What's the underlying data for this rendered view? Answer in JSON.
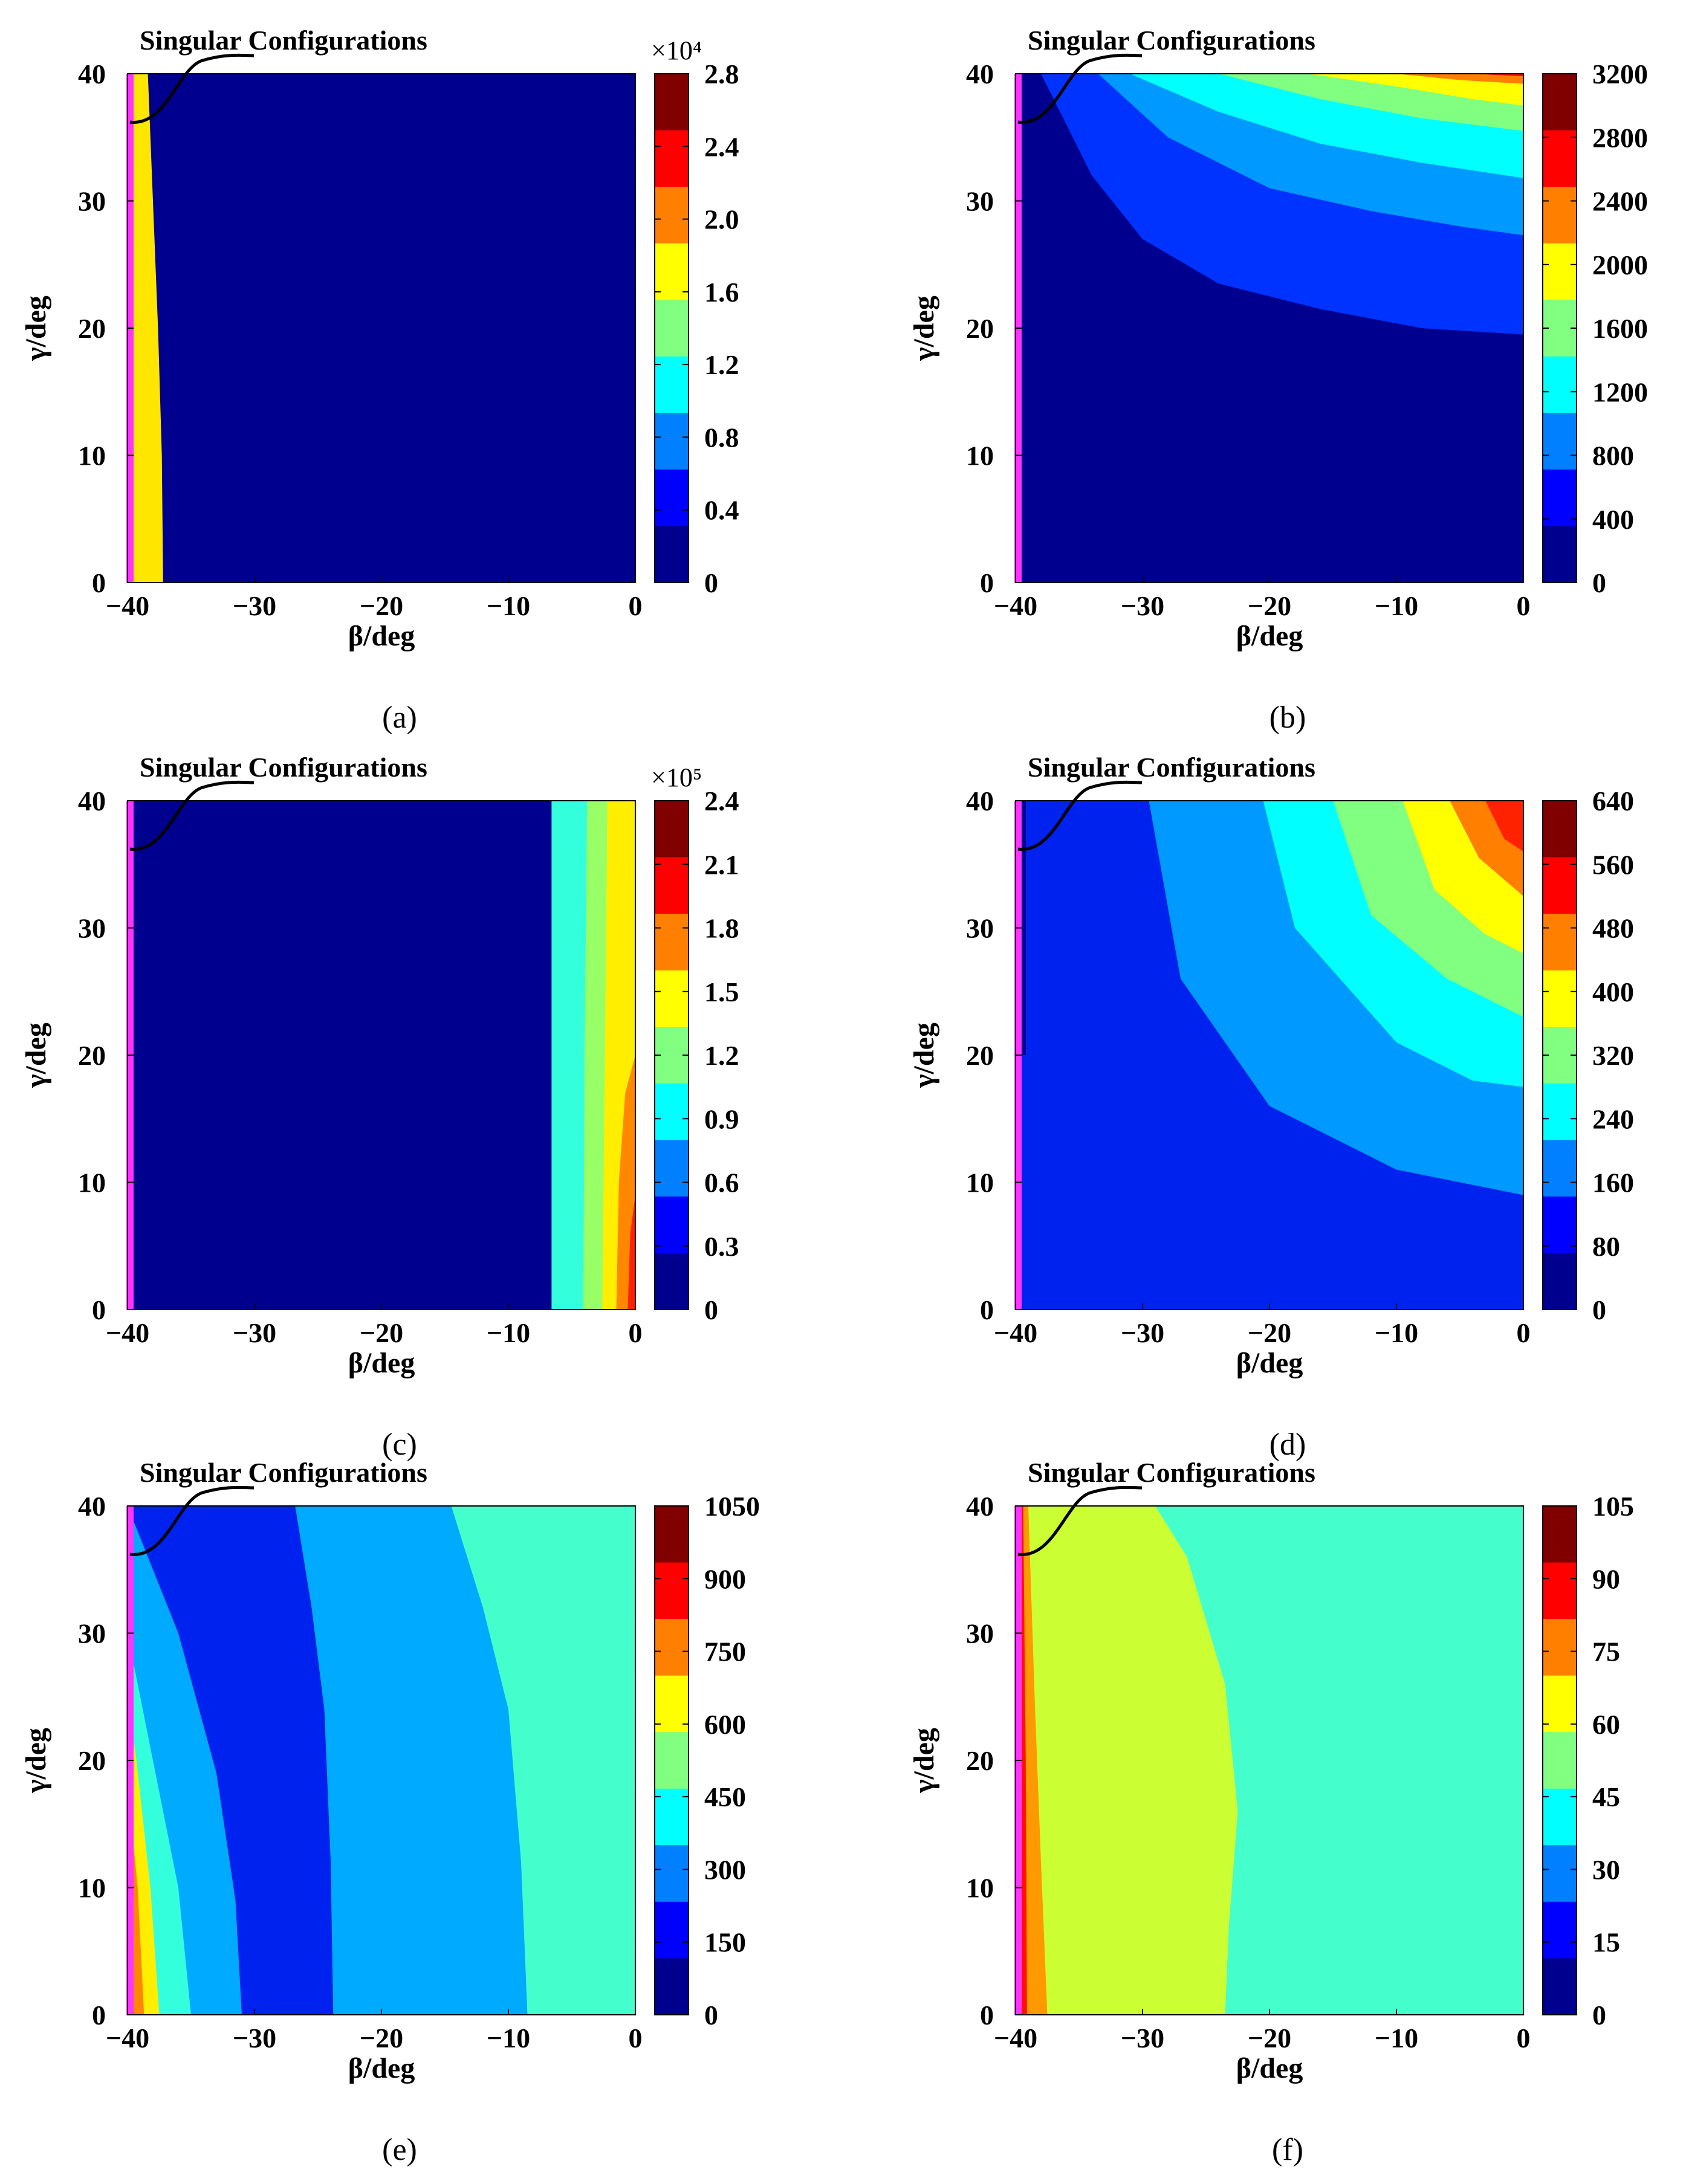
{
  "figure": {
    "annotation_label": "Singular Configurations",
    "singular_line_color": "#ff33ff",
    "colormap": [
      "#00008f",
      "#0000ff",
      "#0080ff",
      "#00ffff",
      "#80ff80",
      "#ffff00",
      "#ff8000",
      "#ff0000",
      "#800000"
    ]
  },
  "chart_data": [
    {
      "panel": "a",
      "caption": "(a)",
      "type": "filled-contour",
      "xlabel": "β/deg",
      "ylabel": "γ/deg",
      "xlim": [
        -40,
        0
      ],
      "ylim": [
        0,
        40
      ],
      "xticks": [
        "−40",
        "−30",
        "−20",
        "−10",
        "0"
      ],
      "yticks": [
        "0",
        "10",
        "20",
        "30",
        "40"
      ],
      "colorbar": {
        "range": [
          0,
          2.8
        ],
        "ticks": [
          "0",
          "0.4",
          "0.8",
          "1.2",
          "1.6",
          "2.0",
          "2.4",
          "2.8"
        ],
        "exponent": "×10⁴"
      },
      "singular_configuration_beta": -40,
      "regions": [
        {
          "color": "#00008f",
          "boundary": "full"
        },
        {
          "color": "#ffe600",
          "boundary": [
            [
              -40,
              0
            ],
            [
              -37.2,
              0
            ],
            [
              -37.3,
              10
            ],
            [
              -37.6,
              20
            ],
            [
              -38.0,
              30
            ],
            [
              -38.4,
              40
            ],
            [
              -40,
              40
            ]
          ]
        },
        {
          "color": "#ff8000",
          "boundary": [
            [
              -40,
              0
            ],
            [
              -39.7,
              0
            ],
            [
              -39.7,
              40
            ],
            [
              -40,
              40
            ]
          ]
        }
      ]
    },
    {
      "panel": "b",
      "caption": "(b)",
      "type": "filled-contour",
      "xlabel": "β/deg",
      "ylabel": "γ/deg",
      "xlim": [
        -40,
        0
      ],
      "ylim": [
        0,
        40
      ],
      "xticks": [
        "−40",
        "−30",
        "−20",
        "−10",
        "0"
      ],
      "yticks": [
        "0",
        "10",
        "20",
        "30",
        "40"
      ],
      "colorbar": {
        "range": [
          0,
          3200
        ],
        "ticks": [
          "0",
          "400",
          "800",
          "1200",
          "1600",
          "2000",
          "2400",
          "2800",
          "3200"
        ]
      },
      "singular_configuration_beta": -40,
      "regions": [
        {
          "color": "#00008f",
          "boundary": "full"
        },
        {
          "color": "#0033ff",
          "boundary": [
            [
              -38,
              40
            ],
            [
              -34,
              32
            ],
            [
              -30,
              27
            ],
            [
              -24,
              23.5
            ],
            [
              -16,
              21.5
            ],
            [
              -8,
              20
            ],
            [
              0,
              19.5
            ],
            [
              0,
              40
            ]
          ]
        },
        {
          "color": "#0099ff",
          "boundary": [
            [
              -33.5,
              40
            ],
            [
              -28,
              35
            ],
            [
              -20,
              31
            ],
            [
              -12,
              29.2
            ],
            [
              -5,
              28
            ],
            [
              0,
              27.3
            ],
            [
              0,
              40
            ]
          ]
        },
        {
          "color": "#00ffff",
          "boundary": [
            [
              -31,
              40
            ],
            [
              -24,
              37
            ],
            [
              -16,
              34.5
            ],
            [
              -8,
              33
            ],
            [
              0,
              31.8
            ],
            [
              0,
              40
            ]
          ]
        },
        {
          "color": "#80ff80",
          "boundary": [
            [
              -24,
              40
            ],
            [
              -16,
              38
            ],
            [
              -8,
              36.5
            ],
            [
              0,
              35.5
            ],
            [
              0,
              40
            ]
          ]
        },
        {
          "color": "#ffff00",
          "boundary": [
            [
              -17,
              40
            ],
            [
              -10,
              39
            ],
            [
              -4,
              38
            ],
            [
              0,
              37.5
            ],
            [
              0,
              40
            ]
          ]
        },
        {
          "color": "#ff8000",
          "boundary": [
            [
              -10,
              40
            ],
            [
              -5,
              39.5
            ],
            [
              0,
              39.2
            ],
            [
              0,
              40
            ]
          ]
        },
        {
          "color": "#ff0000",
          "boundary": [
            [
              -4,
              40
            ],
            [
              0,
              39.8
            ],
            [
              0,
              40
            ]
          ]
        }
      ]
    },
    {
      "panel": "c",
      "caption": "(c)",
      "type": "filled-contour",
      "xlabel": "β/deg",
      "ylabel": "γ/deg",
      "xlim": [
        -40,
        0
      ],
      "ylim": [
        0,
        40
      ],
      "xticks": [
        "−40",
        "−30",
        "−20",
        "−10",
        "0"
      ],
      "yticks": [
        "0",
        "10",
        "20",
        "30",
        "40"
      ],
      "colorbar": {
        "range": [
          0,
          2.4
        ],
        "ticks": [
          "0",
          "0.3",
          "0.6",
          "0.9",
          "1.2",
          "1.5",
          "1.8",
          "2.1",
          "2.4"
        ],
        "exponent": "×10⁵"
      },
      "singular_configuration_beta": -40,
      "regions": [
        {
          "color": "#00008f",
          "boundary": "full"
        },
        {
          "color": "#33ffdd",
          "boundary": [
            [
              -6.6,
              0
            ],
            [
              -6.6,
              40
            ],
            [
              0,
              40
            ],
            [
              0,
              0
            ]
          ]
        },
        {
          "color": "#99ff66",
          "boundary": [
            [
              -4.1,
              0
            ],
            [
              -4,
              20
            ],
            [
              -3.8,
              40
            ],
            [
              0,
              40
            ],
            [
              0,
              0
            ]
          ]
        },
        {
          "color": "#ffee00",
          "boundary": [
            [
              -2.6,
              0
            ],
            [
              -2.4,
              20
            ],
            [
              -2.2,
              40
            ],
            [
              0,
              40
            ],
            [
              0,
              0
            ]
          ]
        },
        {
          "color": "#ff8800",
          "boundary": [
            [
              -1.5,
              0
            ],
            [
              -1.3,
              10
            ],
            [
              -0.8,
              17
            ],
            [
              0,
              20
            ],
            [
              0,
              0
            ]
          ]
        },
        {
          "color": "#ff2200",
          "boundary": [
            [
              -0.6,
              0
            ],
            [
              -0.4,
              6
            ],
            [
              0,
              9
            ],
            [
              0,
              0
            ]
          ]
        }
      ]
    },
    {
      "panel": "d",
      "caption": "(d)",
      "type": "filled-contour",
      "xlabel": "β/deg",
      "ylabel": "γ/deg",
      "xlim": [
        -40,
        0
      ],
      "ylim": [
        0,
        40
      ],
      "xticks": [
        "−40",
        "−30",
        "−20",
        "−10",
        "0"
      ],
      "yticks": [
        "0",
        "10",
        "20",
        "30",
        "40"
      ],
      "colorbar": {
        "range": [
          0,
          640
        ],
        "ticks": [
          "0",
          "80",
          "160",
          "240",
          "320",
          "400",
          "480",
          "560",
          "640"
        ]
      },
      "singular_configuration_beta": -40,
      "regions": [
        {
          "color": "#0022ee",
          "boundary": "full"
        },
        {
          "color": "#00008f",
          "boundary": [
            [
              -40,
              40
            ],
            [
              -39.2,
              40
            ],
            [
              -39.2,
              20
            ],
            [
              -40,
              20
            ]
          ]
        },
        {
          "color": "#0099ff",
          "boundary": [
            [
              -29.5,
              40
            ],
            [
              -27,
              26
            ],
            [
              -20,
              16
            ],
            [
              -10,
              11
            ],
            [
              0,
              9
            ],
            [
              0,
              40
            ]
          ]
        },
        {
          "color": "#00ffff",
          "boundary": [
            [
              -20.5,
              40
            ],
            [
              -18,
              30
            ],
            [
              -10,
              21
            ],
            [
              -4,
              18
            ],
            [
              0,
              17.5
            ],
            [
              0,
              40
            ]
          ]
        },
        {
          "color": "#80ff80",
          "boundary": [
            [
              -15,
              40
            ],
            [
              -12,
              31
            ],
            [
              -6,
              26
            ],
            [
              0,
              23
            ],
            [
              0,
              40
            ]
          ]
        },
        {
          "color": "#ffff00",
          "boundary": [
            [
              -9.5,
              40
            ],
            [
              -7,
              33
            ],
            [
              -3,
              29.5
            ],
            [
              0,
              28
            ],
            [
              0,
              40
            ]
          ]
        },
        {
          "color": "#ff8000",
          "boundary": [
            [
              -5.8,
              40
            ],
            [
              -3.5,
              35.5
            ],
            [
              0,
              32.5
            ],
            [
              0,
              40
            ]
          ]
        },
        {
          "color": "#ff2200",
          "boundary": [
            [
              -3,
              40
            ],
            [
              -1.5,
              37
            ],
            [
              0,
              36
            ],
            [
              0,
              40
            ]
          ]
        }
      ]
    },
    {
      "panel": "e",
      "caption": "(e)",
      "type": "filled-contour",
      "xlabel": "β/deg",
      "ylabel": "γ/deg",
      "xlim": [
        -40,
        0
      ],
      "ylim": [
        0,
        40
      ],
      "xticks": [
        "−40",
        "−30",
        "−20",
        "−10",
        "0"
      ],
      "yticks": [
        "0",
        "10",
        "20",
        "30",
        "40"
      ],
      "colorbar": {
        "range": [
          0,
          1050
        ],
        "ticks": [
          "0",
          "150",
          "300",
          "450",
          "600",
          "750",
          "900",
          "1050"
        ]
      },
      "singular_configuration_beta": -40,
      "regions": [
        {
          "color": "#44ffcc",
          "boundary": "full"
        },
        {
          "color": "#00aaff",
          "boundary": [
            [
              -40,
              0
            ],
            [
              -8.5,
              0
            ],
            [
              -9,
              12
            ],
            [
              -10,
              24
            ],
            [
              -12,
              32
            ],
            [
              -14.5,
              40
            ],
            [
              -40,
              40
            ]
          ]
        },
        {
          "color": "#0022ee",
          "boundary": [
            [
              -40,
              0
            ],
            [
              -23.8,
              0
            ],
            [
              -24,
              12
            ],
            [
              -24.5,
              24
            ],
            [
              -25.5,
              32
            ],
            [
              -26.8,
              40
            ],
            [
              -40,
              40
            ]
          ]
        },
        {
          "color": "#00aaff",
          "boundary": [
            [
              -40,
              0
            ],
            [
              -31,
              0
            ],
            [
              -31.5,
              9
            ],
            [
              -33,
              19
            ],
            [
              -36,
              30
            ],
            [
              -40,
              40
            ]
          ]
        },
        {
          "color": "#33ffdd",
          "boundary": [
            [
              -40,
              0
            ],
            [
              -35,
              0
            ],
            [
              -36,
              10
            ],
            [
              -38,
              20
            ],
            [
              -40,
              30
            ]
          ]
        },
        {
          "color": "#ffee00",
          "boundary": [
            [
              -40,
              0
            ],
            [
              -37.5,
              0
            ],
            [
              -38.2,
              10
            ],
            [
              -39.3,
              20
            ],
            [
              -40,
              25
            ]
          ]
        },
        {
          "color": "#ff8800",
          "boundary": [
            [
              -40,
              0
            ],
            [
              -38.7,
              0
            ],
            [
              -39.2,
              10
            ],
            [
              -40,
              18
            ]
          ]
        },
        {
          "color": "#ff1100",
          "boundary": [
            [
              -40,
              0
            ],
            [
              -39.5,
              0
            ],
            [
              -39.8,
              8
            ],
            [
              -40,
              10
            ]
          ]
        }
      ]
    },
    {
      "panel": "f",
      "caption": "(f)",
      "type": "filled-contour",
      "xlabel": "β/deg",
      "ylabel": "γ/deg",
      "xlim": [
        -40,
        0
      ],
      "ylim": [
        0,
        40
      ],
      "xticks": [
        "−40",
        "−30",
        "−20",
        "−10",
        "0"
      ],
      "yticks": [
        "0",
        "10",
        "20",
        "30",
        "40"
      ],
      "colorbar": {
        "range": [
          0,
          105
        ],
        "ticks": [
          "0",
          "15",
          "30",
          "45",
          "60",
          "75",
          "90",
          "105"
        ]
      },
      "singular_configuration_beta": -40,
      "regions": [
        {
          "color": "#44ffcc",
          "boundary": "full"
        },
        {
          "color": "#ccff33",
          "boundary": [
            [
              -40,
              0
            ],
            [
              -23.5,
              0
            ],
            [
              -23.2,
              7
            ],
            [
              -22.5,
              16
            ],
            [
              -23.5,
              26
            ],
            [
              -26.5,
              36
            ],
            [
              -29,
              40
            ],
            [
              -40,
              40
            ]
          ]
        },
        {
          "color": "#ff9900",
          "boundary": [
            [
              -40,
              0
            ],
            [
              -37.5,
              0
            ],
            [
              -38,
              12
            ],
            [
              -38.5,
              25
            ],
            [
              -39,
              40
            ],
            [
              -40,
              40
            ]
          ]
        },
        {
          "color": "#ff1100",
          "boundary": [
            [
              -40,
              0
            ],
            [
              -39.1,
              0
            ],
            [
              -39.2,
              20
            ],
            [
              -39.4,
              40
            ],
            [
              -40,
              40
            ]
          ]
        }
      ]
    }
  ]
}
